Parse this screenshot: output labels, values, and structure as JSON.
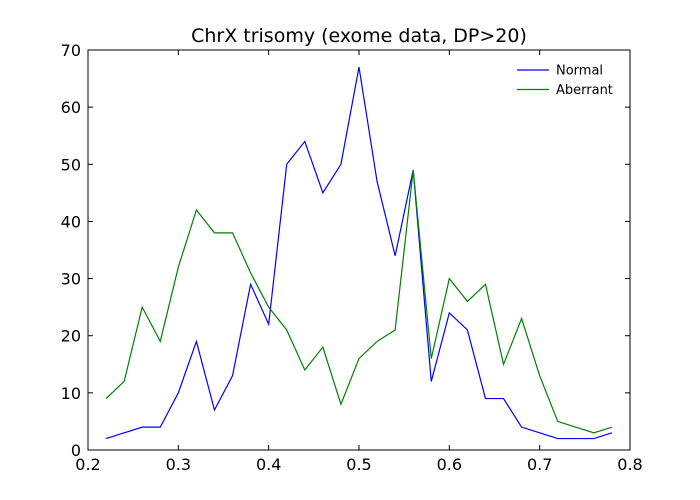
{
  "chart_data": {
    "type": "line",
    "title": "ChrX trisomy (exome data, DP>20)",
    "xlabel": "",
    "ylabel": "",
    "xlim": [
      0.2,
      0.8
    ],
    "ylim": [
      0,
      70
    ],
    "xticks": [
      0.2,
      0.3,
      0.4,
      0.5,
      0.6,
      0.7,
      0.8
    ],
    "xtick_labels": [
      "0.2",
      "0.3",
      "0.4",
      "0.5",
      "0.6",
      "0.7",
      "0.8"
    ],
    "yticks": [
      0,
      10,
      20,
      30,
      40,
      50,
      60,
      70
    ],
    "ytick_labels": [
      "0",
      "10",
      "20",
      "30",
      "40",
      "50",
      "60",
      "70"
    ],
    "grid": false,
    "legend_position": "top-right",
    "x": [
      0.22,
      0.24,
      0.26,
      0.28,
      0.3,
      0.32,
      0.34,
      0.36,
      0.38,
      0.4,
      0.42,
      0.44,
      0.46,
      0.48,
      0.5,
      0.52,
      0.54,
      0.56,
      0.58,
      0.6,
      0.62,
      0.64,
      0.66,
      0.68,
      0.7,
      0.72,
      0.74,
      0.76,
      0.78
    ],
    "series": [
      {
        "name": "Normal",
        "color": "#0000ff",
        "values": [
          2,
          3,
          4,
          4,
          10,
          19,
          7,
          13,
          29,
          22,
          50,
          54,
          45,
          50,
          67,
          47,
          34,
          49,
          12,
          24,
          21,
          9,
          9,
          4,
          3,
          2,
          2,
          2,
          3
        ]
      },
      {
        "name": "Aberrant",
        "color": "#008000",
        "values": [
          9,
          12,
          25,
          19,
          32,
          42,
          38,
          38,
          31,
          25,
          21,
          14,
          18,
          8,
          16,
          19,
          21,
          49,
          16,
          30,
          26,
          29,
          15,
          23,
          13,
          5,
          4,
          3,
          4
        ]
      }
    ]
  }
}
